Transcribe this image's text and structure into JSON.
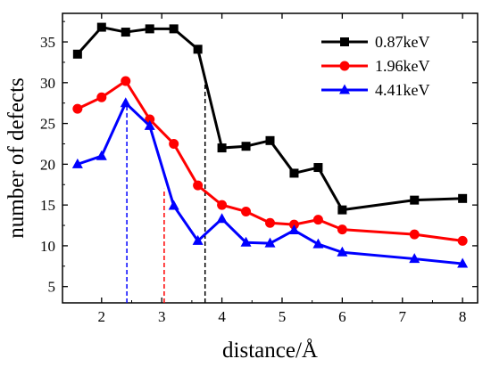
{
  "chart_data": {
    "type": "line",
    "xlabel": "distance/Å",
    "ylabel": "number of defects",
    "xlim": [
      1.35,
      8.25
    ],
    "ylim": [
      3,
      38.5
    ],
    "x_ticks": [
      2,
      3,
      4,
      5,
      6,
      7,
      8
    ],
    "y_ticks": [
      5,
      10,
      15,
      20,
      25,
      30,
      35
    ],
    "legend_position": "top-right",
    "grid": false,
    "series": [
      {
        "name": "0.87keV",
        "color": "#000000",
        "marker": "square",
        "x": [
          1.6,
          2.0,
          2.4,
          2.8,
          3.2,
          3.6,
          4.0,
          4.4,
          4.8,
          5.2,
          5.6,
          6.0,
          7.2,
          8.0
        ],
        "y": [
          33.5,
          36.8,
          36.2,
          36.6,
          36.6,
          34.1,
          22.0,
          22.2,
          22.9,
          18.9,
          19.6,
          14.4,
          15.6,
          15.8
        ]
      },
      {
        "name": "1.96keV",
        "color": "#ff0000",
        "marker": "circle",
        "x": [
          1.6,
          2.0,
          2.4,
          2.8,
          3.2,
          3.6,
          4.0,
          4.4,
          4.8,
          5.2,
          5.6,
          6.0,
          7.2,
          8.0
        ],
        "y": [
          26.8,
          28.2,
          30.2,
          25.5,
          22.5,
          17.4,
          15.0,
          14.2,
          12.8,
          12.6,
          13.2,
          12.0,
          11.4,
          10.6
        ]
      },
      {
        "name": "4.41keV",
        "color": "#0000ff",
        "marker": "triangle",
        "x": [
          1.6,
          2.0,
          2.4,
          2.8,
          3.2,
          3.6,
          4.0,
          4.4,
          4.8,
          5.2,
          5.6,
          6.0,
          7.2,
          8.0
        ],
        "y": [
          20.0,
          21.0,
          27.5,
          24.7,
          14.9,
          10.6,
          13.3,
          10.4,
          10.3,
          11.9,
          10.2,
          9.2,
          8.4,
          7.8
        ]
      }
    ],
    "annotations": [
      {
        "type": "vline",
        "x": 2.42,
        "y_top": 27.5,
        "color": "#0000ff",
        "style": "dashed"
      },
      {
        "type": "vline",
        "x": 3.04,
        "y_top": 17.0,
        "color": "#ff0000",
        "style": "dashed"
      },
      {
        "type": "vline",
        "x": 3.72,
        "y_top": 30.0,
        "color": "#000000",
        "style": "dashed"
      }
    ]
  }
}
